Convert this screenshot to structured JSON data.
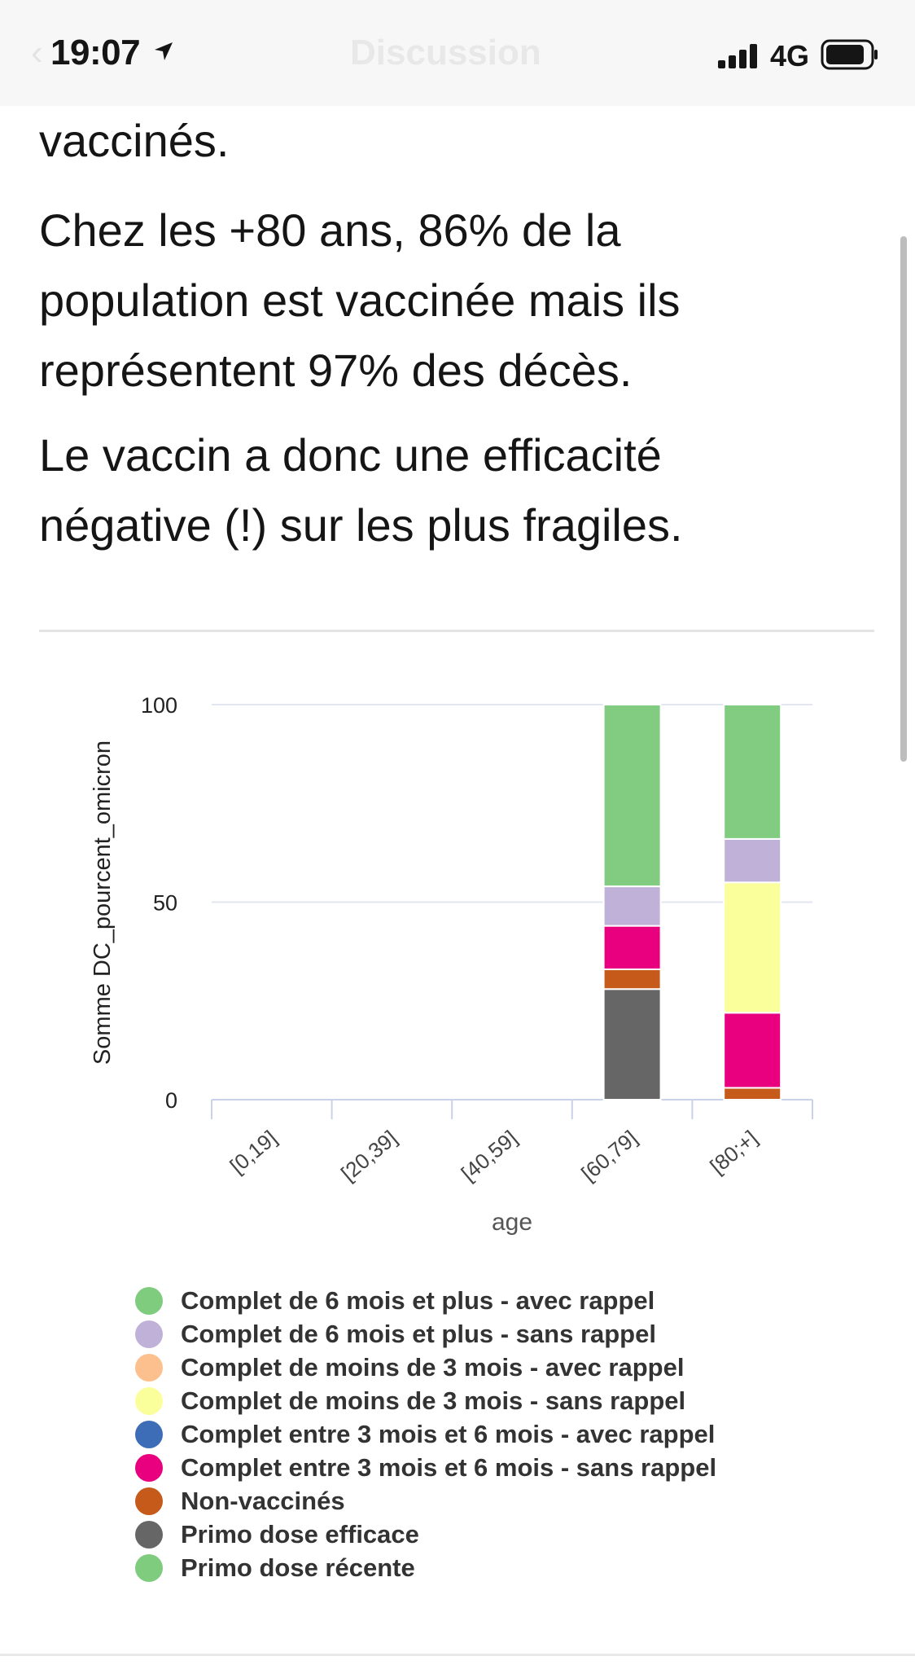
{
  "status": {
    "time": "19:07",
    "network": "4G",
    "icons": [
      "location-arrow-icon",
      "signal-icon",
      "battery-icon"
    ]
  },
  "nav": {
    "title": "Discussion",
    "back_icon": "chevron-left-icon"
  },
  "tweet": {
    "paragraphs": [
      "vaccinés.",
      "Chez les +80 ans, 86% de la population est vaccinée mais ils représentent 97% des décès.",
      "Le vaccin a donc une efficacité négative (!) sur les plus fragiles."
    ]
  },
  "chart_data": {
    "type": "bar",
    "stacked": true,
    "title": "",
    "xlabel": "age",
    "ylabel": "Somme DC_pourcent_omicron",
    "ylim": [
      0,
      100
    ],
    "yticks": [
      0,
      50,
      100
    ],
    "grid": true,
    "legend_position": "bottom",
    "categories": [
      "[0,19]",
      "[20,39]",
      "[40,59]",
      "[60,79]",
      "[80;+]"
    ],
    "series": [
      {
        "name": "Primo dose efficace",
        "color": "#666666",
        "values": [
          0,
          0,
          0,
          28,
          0
        ]
      },
      {
        "name": "Non-vaccinés",
        "color": "#c55a1a",
        "values": [
          0,
          0,
          0,
          5,
          3
        ]
      },
      {
        "name": "Complet entre 3 mois et 6 mois - sans rappel",
        "color": "#e8007f",
        "values": [
          0,
          0,
          0,
          11,
          19
        ]
      },
      {
        "name": "Complet de moins de 3 mois - sans rappel",
        "color": "#fbff9b",
        "values": [
          0,
          0,
          0,
          0,
          33
        ]
      },
      {
        "name": "Complet de 6 mois et plus - sans rappel",
        "color": "#c0b1d9",
        "values": [
          0,
          0,
          0,
          10,
          11
        ]
      },
      {
        "name": "Complet de 6 mois et plus - avec rappel",
        "color": "#82cc82",
        "values": [
          0,
          0,
          0,
          46,
          34
        ]
      }
    ],
    "legend": [
      {
        "name": "Complet de 6 mois et plus - avec rappel",
        "color": "#7fcc7f"
      },
      {
        "name": "Complet de 6 mois et plus - sans rappel",
        "color": "#c0b1d9"
      },
      {
        "name": "Complet de moins de 3 mois - avec rappel",
        "color": "#fbc08e"
      },
      {
        "name": "Complet de moins de 3 mois - sans rappel",
        "color": "#fbff9b"
      },
      {
        "name": "Complet entre 3 mois et 6 mois - avec rappel",
        "color": "#3c6db6"
      },
      {
        "name": "Complet entre 3 mois et 6 mois - sans rappel",
        "color": "#e8007f"
      },
      {
        "name": "Non-vaccinés",
        "color": "#c55a1a"
      },
      {
        "name": "Primo dose efficace",
        "color": "#666666"
      },
      {
        "name": "Primo dose récente",
        "color": "#7fcc7f"
      }
    ]
  }
}
